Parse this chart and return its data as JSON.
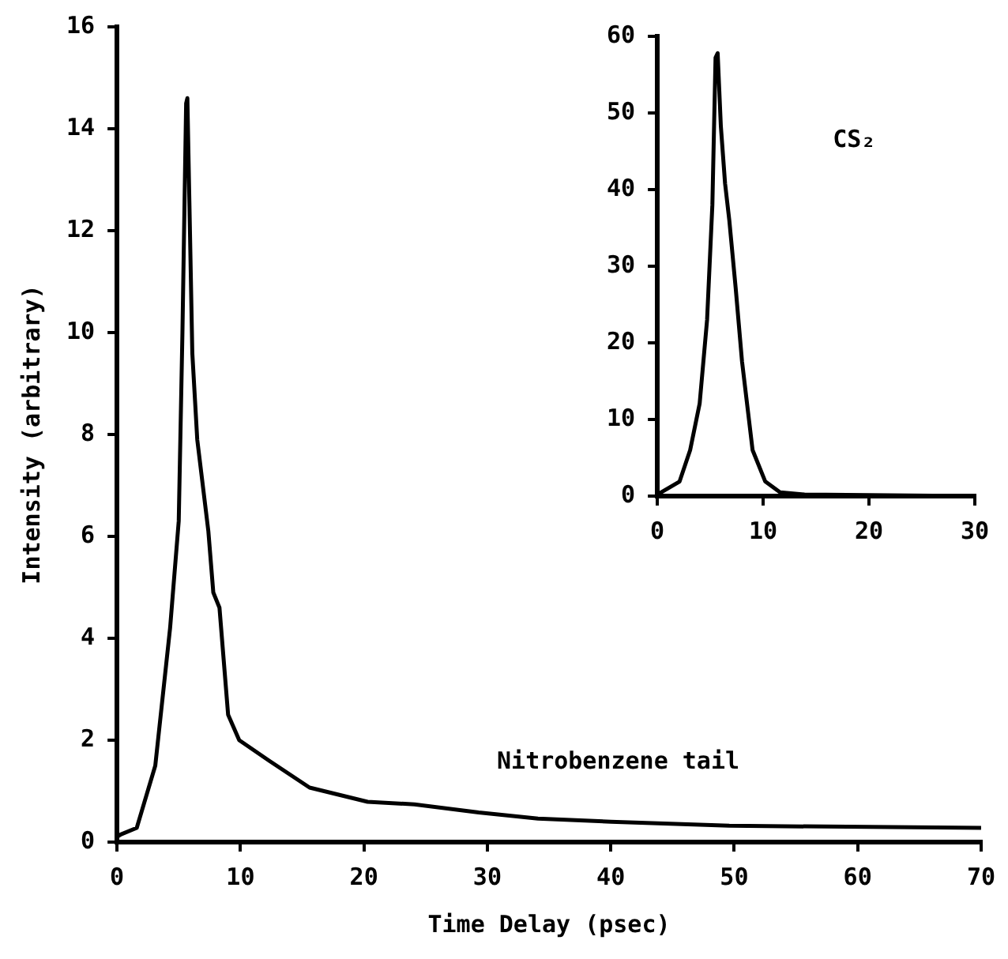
{
  "chart_data": [
    {
      "type": "line",
      "xlabel": "Time Delay (psec)",
      "ylabel": "Intensity (arbitrary)",
      "xlim": [
        0,
        70
      ],
      "xticks": [
        0,
        10,
        20,
        30,
        40,
        50,
        60,
        70
      ],
      "ylim": [
        0,
        16
      ],
      "yticks": [
        0,
        2,
        4,
        6,
        8,
        10,
        12,
        14,
        16
      ],
      "grid": false,
      "legend": false,
      "marker": "none",
      "line_style": "solid",
      "series": [
        {
          "name": "Nitrobenzene tail",
          "color": "#000000",
          "x": [
            0,
            0.3,
            1.6,
            3.1,
            4.3,
            5.0,
            5.3,
            5.6,
            5.7,
            6.1,
            6.5,
            7.4,
            7.8,
            8.3,
            9.0,
            9.9,
            12.3,
            15.6,
            20.3,
            24.1,
            29.3,
            34.1,
            40,
            49.6,
            70
          ],
          "values": [
            0.1,
            0.15,
            0.28,
            1.5,
            4.2,
            6.3,
            10.0,
            14.5,
            14.6,
            9.6,
            7.9,
            6.1,
            4.9,
            4.6,
            2.5,
            2.0,
            1.6,
            1.07,
            0.79,
            0.74,
            0.58,
            0.46,
            0.4,
            0.32,
            0.28
          ]
        }
      ]
    },
    {
      "type": "line",
      "xlim": [
        0,
        30
      ],
      "xticks": [
        0,
        10,
        20,
        30
      ],
      "ylim": [
        0,
        60
      ],
      "yticks": [
        0,
        10,
        20,
        30,
        40,
        50,
        60
      ],
      "grid": false,
      "legend": false,
      "marker": "none",
      "line_style": "solid",
      "series": [
        {
          "name": "CS₂",
          "color": "#000000",
          "x": [
            0,
            2.1,
            3.1,
            4.0,
            4.7,
            5.2,
            5.5,
            5.7,
            6.0,
            6.4,
            6.8,
            7.4,
            8.0,
            9.0,
            10.2,
            11.6,
            13.9,
            30
          ],
          "values": [
            0.2,
            1.9,
            6.0,
            12.1,
            23,
            38,
            57.2,
            57.8,
            48.3,
            40.8,
            36,
            27.2,
            17.6,
            6.0,
            1.9,
            0.5,
            0.2,
            0
          ]
        }
      ]
    }
  ]
}
